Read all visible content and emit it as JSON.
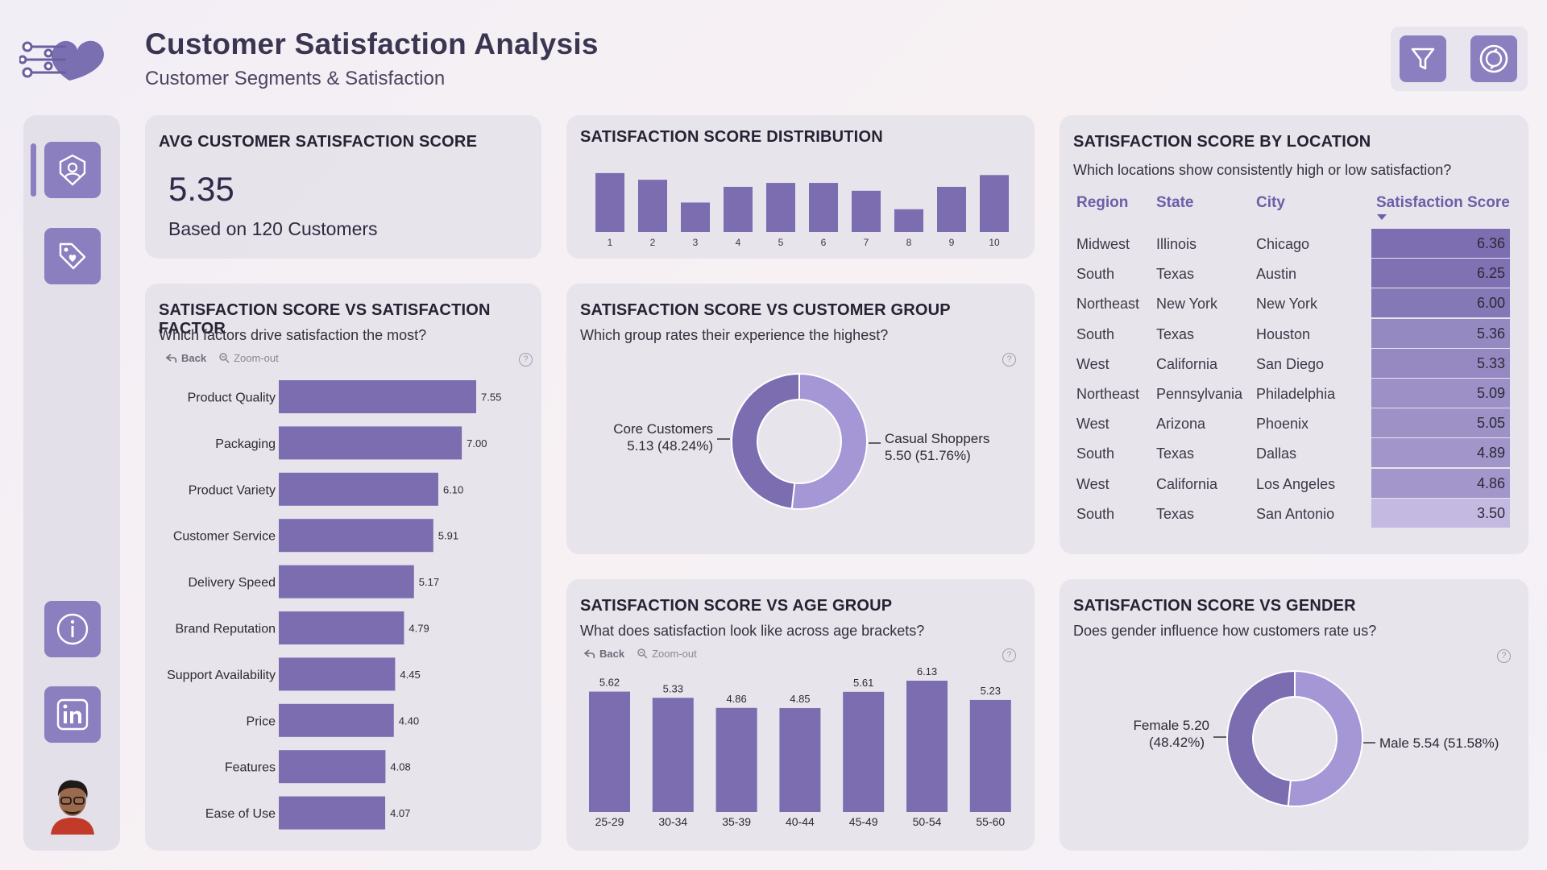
{
  "header": {
    "title": "Customer Satisfaction Analysis",
    "subtitle": "Customer Segments & Satisfaction"
  },
  "colors": {
    "accent": "#8b7fbf",
    "bar": "#7b6db0",
    "barLight": "#a596d6"
  },
  "kpi": {
    "title": "AVG CUSTOMER SATISFACTION SCORE",
    "value": "5.35",
    "subtext": "Based on 120 Customers"
  },
  "tools": {
    "back": "Back",
    "zoom": "Zoom-out"
  },
  "chart_data": [
    {
      "id": "distribution",
      "type": "bar",
      "title": "SATISFACTION SCORE DISTRIBUTION",
      "categories": [
        "1",
        "2",
        "3",
        "4",
        "5",
        "6",
        "7",
        "8",
        "9",
        "10"
      ],
      "values": [
        15,
        13.3,
        7.5,
        11.5,
        12.5,
        12.5,
        10.5,
        5.8,
        11.5,
        14.5
      ],
      "ylim": [
        0,
        16
      ]
    },
    {
      "id": "factor",
      "type": "bar",
      "orientation": "horizontal",
      "title": "SATISFACTION SCORE VS SATISFACTION FACTOR",
      "question": "Which factors drive satisfaction the most?",
      "categories": [
        "Product Quality",
        "Packaging",
        "Product Variety",
        "Customer Service",
        "Delivery Speed",
        "Brand Reputation",
        "Support Availability",
        "Price",
        "Features",
        "Ease of Use"
      ],
      "values": [
        7.55,
        7.0,
        6.1,
        5.91,
        5.17,
        4.79,
        4.45,
        4.4,
        4.08,
        4.07
      ],
      "labels": [
        "7.55",
        "7.00",
        "6.10",
        "5.91",
        "5.17",
        "4.79",
        "4.45",
        "4.40",
        "4.08",
        "4.07"
      ],
      "xlim": [
        0,
        8
      ]
    },
    {
      "id": "group",
      "type": "pie",
      "title": "SATISFACTION SCORE VS CUSTOMER GROUP",
      "question": "Which group rates their experience the highest?",
      "slices": [
        {
          "name": "Casual Shoppers",
          "value": 5.5,
          "pct": 51.76,
          "label1": "Casual Shoppers",
          "label2": "5.50 (51.76%)"
        },
        {
          "name": "Core Customers",
          "value": 5.13,
          "pct": 48.24,
          "label1": "Core Customers",
          "label2": "5.13 (48.24%)"
        }
      ]
    },
    {
      "id": "age",
      "type": "bar",
      "title": "SATISFACTION SCORE VS AGE GROUP",
      "question": "What does satisfaction look like across age brackets?",
      "categories": [
        "25-29",
        "30-34",
        "35-39",
        "40-44",
        "45-49",
        "50-54",
        "55-60"
      ],
      "values": [
        5.62,
        5.33,
        4.86,
        4.85,
        5.61,
        6.13,
        5.23
      ],
      "labels": [
        "5.62",
        "5.33",
        "4.86",
        "4.85",
        "5.61",
        "6.13",
        "5.23"
      ],
      "ylim": [
        0,
        6.5
      ]
    },
    {
      "id": "gender",
      "type": "pie",
      "title": "SATISFACTION SCORE VS GENDER",
      "question": "Does gender influence how customers rate us?",
      "slices": [
        {
          "name": "Male",
          "value": 5.54,
          "pct": 51.58,
          "label1": "Male 5.54 (51.58%)",
          "label2": ""
        },
        {
          "name": "Female",
          "value": 5.2,
          "pct": 48.42,
          "label1": "Female 5.20",
          "label2": "(48.42%)"
        }
      ]
    }
  ],
  "location": {
    "title": "SATISFACTION SCORE BY LOCATION",
    "question": "Which locations show consistently high or low satisfaction?",
    "columns": [
      "Region",
      "State",
      "City",
      "Satisfaction Score"
    ],
    "rows": [
      {
        "region": "Midwest",
        "state": "Illinois",
        "city": "Chicago",
        "score": "6.36",
        "v": 6.36
      },
      {
        "region": "South",
        "state": "Texas",
        "city": "Austin",
        "score": "6.25",
        "v": 6.25
      },
      {
        "region": "Northeast",
        "state": "New York",
        "city": "New York",
        "score": "6.00",
        "v": 6.0
      },
      {
        "region": "South",
        "state": "Texas",
        "city": "Houston",
        "score": "5.36",
        "v": 5.36
      },
      {
        "region": "West",
        "state": "California",
        "city": "San Diego",
        "score": "5.33",
        "v": 5.33
      },
      {
        "region": "Northeast",
        "state": "Pennsylvania",
        "city": "Philadelphia",
        "score": "5.09",
        "v": 5.09
      },
      {
        "region": "West",
        "state": "Arizona",
        "city": "Phoenix",
        "score": "5.05",
        "v": 5.05
      },
      {
        "region": "South",
        "state": "Texas",
        "city": "Dallas",
        "score": "4.89",
        "v": 4.89
      },
      {
        "region": "West",
        "state": "California",
        "city": "Los Angeles",
        "score": "4.86",
        "v": 4.86
      },
      {
        "region": "South",
        "state": "Texas",
        "city": "San Antonio",
        "score": "3.50",
        "v": 3.5
      }
    ]
  }
}
